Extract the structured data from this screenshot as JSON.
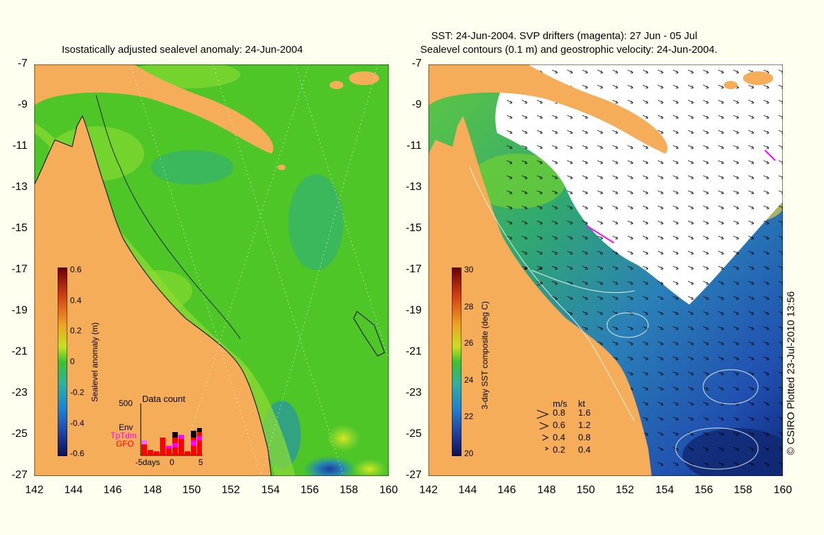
{
  "left_panel": {
    "title": "Isostatically adjusted sealevel anomaly: 24-Jun-2004",
    "colorbar": {
      "label": "Sealevel anomaly (m)",
      "ticks": [
        "0.6",
        "0.4",
        "0.2",
        "0",
        "-0.2",
        "-0.4",
        "-0.6"
      ]
    },
    "data_count": {
      "title": "Data count",
      "ymax_label": "500",
      "legend": [
        {
          "label": "Env",
          "color": "#000000"
        },
        {
          "label": "TpTdm",
          "color": "#ff00ff"
        },
        {
          "label": "GFO",
          "color": "#ff0000"
        }
      ],
      "x_labels": [
        "-5days",
        "0",
        "5"
      ]
    }
  },
  "right_panel": {
    "title_line1": "SST: 24-Jun-2004. SVP drifters (magenta): 27 Jun - 05 Jul",
    "title_line2": "Sealevel contours (0.1 m) and geostrophic velocity: 24-Jun-2004.",
    "colorbar": {
      "label": "3-day SST composite (deg C)",
      "ticks": [
        "30",
        "28",
        "26",
        "24",
        "22",
        "20"
      ]
    },
    "velocity_legend": {
      "header_ms": "m/s",
      "header_kt": "kt",
      "rows": [
        {
          "ms": "0.8",
          "kt": "1.6"
        },
        {
          "ms": "0.6",
          "kt": "1.2"
        },
        {
          "ms": "0.4",
          "kt": "0.8"
        },
        {
          "ms": "0.2",
          "kt": "0.4"
        }
      ]
    }
  },
  "axes": {
    "y_ticks": [
      "-7",
      "-9",
      "-11",
      "-13",
      "-15",
      "-17",
      "-19",
      "-21",
      "-23",
      "-25",
      "-27"
    ],
    "x_ticks": [
      "142",
      "144",
      "146",
      "148",
      "150",
      "152",
      "154",
      "156",
      "158",
      "160"
    ]
  },
  "credit": "© CSIRO Plotted 23-Jul-2010 13:56",
  "colors": {
    "land": "#f5ad5a",
    "background": "#fffff0",
    "ssh_main": "#4ec628",
    "ssh_high": "#a8e030",
    "ssh_low": "#2aa87a",
    "sst_cold": "#1a3fb0",
    "sst_warm": "#6cd050",
    "cloud": "#ffffff",
    "drifter": "#ff00ff"
  }
}
